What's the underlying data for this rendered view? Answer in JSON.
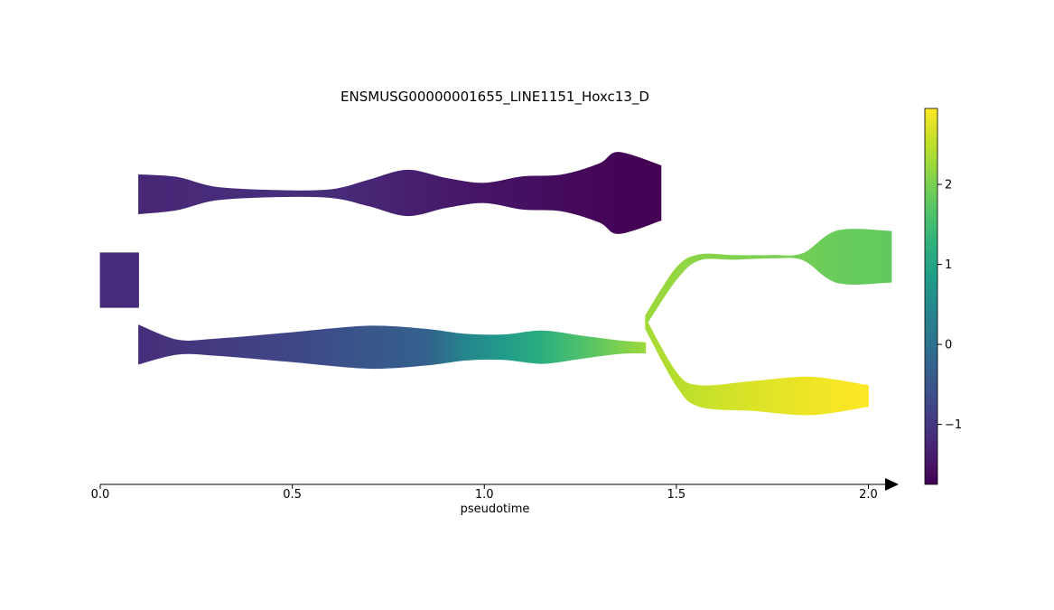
{
  "chart_data": {
    "type": "area",
    "title": "ENSMUSG00000001655_LINE1151_Hoxc13_D",
    "xlabel": "pseudotime",
    "ylabel": "",
    "xlim": [
      0.0,
      2.06
    ],
    "x_ticks": [
      0.0,
      0.5,
      1.0,
      1.5,
      2.0
    ],
    "x_tick_labels": [
      "0.0",
      "0.5",
      "1.0",
      "1.5",
      "2.0"
    ],
    "grid": false,
    "legend": "none",
    "colorbar": {
      "colormap": "viridis",
      "range": [
        -1.75,
        2.95
      ],
      "ticks": [
        -1,
        0,
        1,
        2
      ],
      "tick_labels": [
        "−1",
        "0",
        "1",
        "2"
      ],
      "placement": "right"
    },
    "streams": [
      {
        "id": "root",
        "x": [
          0.0,
          0.05,
          0.1
        ],
        "center": [
          0.0,
          0.0,
          0.0
        ],
        "width": [
          0.84,
          0.84,
          0.84
        ],
        "value": [
          -1.2,
          -1.2,
          -1.18
        ]
      },
      {
        "id": "upper",
        "x": [
          0.1,
          0.2,
          0.3,
          0.45,
          0.6,
          0.7,
          0.8,
          0.9,
          1.0,
          1.1,
          1.2,
          1.3,
          1.35,
          1.46
        ],
        "center": [
          -1.32,
          -1.33,
          -1.33,
          -1.33,
          -1.33,
          -1.34,
          -1.34,
          -1.34,
          -1.34,
          -1.34,
          -1.34,
          -1.34,
          -1.34,
          -1.34
        ],
        "width": [
          0.6,
          0.5,
          0.2,
          0.1,
          0.12,
          0.4,
          0.7,
          0.45,
          0.3,
          0.5,
          0.55,
          0.9,
          1.25,
          0.84
        ],
        "value": [
          -1.25,
          -1.22,
          -1.18,
          -1.15,
          -1.17,
          -1.25,
          -1.35,
          -1.42,
          -1.5,
          -1.55,
          -1.62,
          -1.68,
          -1.72,
          -1.75
        ]
      },
      {
        "id": "lower",
        "x": [
          0.1,
          0.2,
          0.3,
          0.5,
          0.7,
          0.85,
          0.95,
          1.05,
          1.15,
          1.25,
          1.35,
          1.42
        ],
        "center": [
          0.99,
          1.03,
          1.03,
          1.03,
          1.03,
          1.03,
          1.03,
          1.03,
          1.03,
          1.03,
          1.03,
          1.04
        ],
        "width": [
          0.6,
          0.22,
          0.25,
          0.45,
          0.65,
          0.55,
          0.4,
          0.38,
          0.5,
          0.35,
          0.2,
          0.16
        ],
        "value": [
          -1.15,
          -1.05,
          -0.95,
          -0.75,
          -0.5,
          -0.3,
          0.4,
          0.8,
          1.2,
          1.6,
          2.0,
          2.25
        ]
      },
      {
        "id": "lower_up",
        "x": [
          1.42,
          1.5,
          1.56,
          1.65,
          1.75,
          1.83,
          1.92,
          2.06
        ],
        "center": [
          0.62,
          -0.1,
          -0.35,
          -0.35,
          -0.36,
          -0.36,
          -0.36,
          -0.36
        ],
        "width": [
          0.16,
          0.18,
          0.08,
          0.06,
          0.04,
          0.1,
          0.8,
          0.78
        ],
        "value": [
          2.25,
          2.2,
          2.1,
          2.05,
          2.0,
          1.95,
          1.85,
          1.8
        ]
      },
      {
        "id": "lower_down",
        "x": [
          1.42,
          1.5,
          1.56,
          1.7,
          1.85,
          2.0
        ],
        "center": [
          0.67,
          1.52,
          1.78,
          1.78,
          1.78,
          1.78
        ],
        "width": [
          0.16,
          0.2,
          0.32,
          0.45,
          0.58,
          0.32
        ],
        "value": [
          2.3,
          2.45,
          2.55,
          2.7,
          2.85,
          2.95
        ]
      }
    ]
  }
}
